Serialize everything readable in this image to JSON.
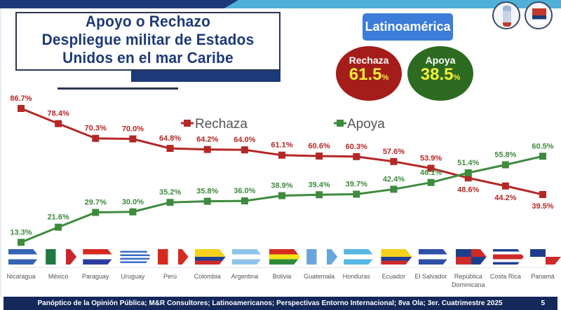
{
  "slide": {
    "title_lines": [
      "Apoyo o Rechazo",
      "Despliegue militar de Estados",
      "Unidos en el mar Caribe"
    ],
    "region": "Latinoamérica",
    "summary": {
      "rechaza": {
        "label": "Rechaza",
        "value": "61.5",
        "unit": "%",
        "color": "#a41d1a"
      },
      "apoya": {
        "label": "Apoya",
        "value": "38.5",
        "unit": "%",
        "color": "#2d6b20"
      }
    },
    "logos": [
      "panoptico-logo",
      "myr-consultores-logo"
    ],
    "footer": {
      "source": "Panóptico de la Opinión Pública; M&R Consultores; Latinoamericanos; Perspectivas Entorno Internacional; 8va Ola; 3er. Cuatrimestre 2025",
      "page": "5"
    }
  },
  "chart_data": {
    "type": "line",
    "title": "Apoyo o Rechazo Despliegue militar de Estados Unidos en el mar Caribe",
    "xlabel": "",
    "ylabel": "",
    "ylim": [
      0,
      100
    ],
    "grid": false,
    "legend": "top-center",
    "categories": [
      "Nicaragua",
      "México",
      "Paraguay",
      "Uruguay",
      "Perú",
      "Colombia",
      "Argentina",
      "Bolivia",
      "Guatemala",
      "Honduras",
      "Ecuador",
      "El Salvador",
      "República Dominicana",
      "Costa Rica",
      "Panamá"
    ],
    "series": [
      {
        "name": "Rechaza",
        "color": "#b32826",
        "values": [
          86.7,
          78.4,
          70.3,
          70.0,
          64.8,
          64.2,
          64.0,
          61.1,
          60.6,
          60.3,
          57.6,
          53.9,
          48.6,
          44.2,
          39.5
        ],
        "labels": [
          "86.7%",
          "78.4%",
          "70.3%",
          "70.0%",
          "64.8%",
          "64.2%",
          "64.0%",
          "61.1%",
          "60.6%",
          "60.3%",
          "57.6%",
          "53.9%",
          "48.6%",
          "44.2%",
          "39.5%"
        ]
      },
      {
        "name": "Apoya",
        "color": "#3f8a3e",
        "values": [
          13.3,
          21.6,
          29.7,
          30.0,
          35.2,
          35.8,
          36.0,
          38.9,
          39.4,
          39.7,
          42.4,
          46.1,
          51.4,
          55.8,
          60.5
        ],
        "labels": [
          "13.3%",
          "21.6%",
          "29.7%",
          "30.0%",
          "35.2%",
          "35.8%",
          "36.0%",
          "38.9%",
          "39.4%",
          "39.7%",
          "42.4%",
          "46.1%",
          "51.4%",
          "55.8%",
          "60.5%"
        ]
      }
    ]
  }
}
